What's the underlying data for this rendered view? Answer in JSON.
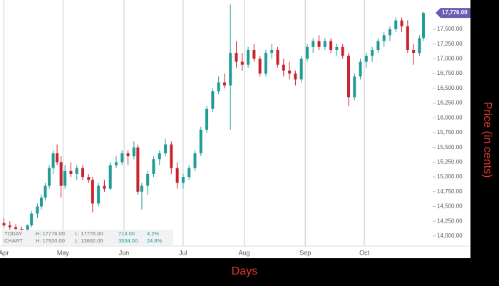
{
  "chart_data": {
    "type": "candlestick",
    "x_label": "Days",
    "y_label": "Price (in cents)",
    "last_price_label": "17,776.00",
    "up_color": "#1f9c96",
    "down_color": "#c8232c",
    "grid": true,
    "x": [
      0,
      3,
      6,
      9,
      12,
      14,
      17,
      19,
      21,
      23,
      25,
      27,
      29,
      31,
      34,
      37,
      40,
      43,
      45,
      48,
      51,
      54,
      57,
      60,
      63,
      66,
      68,
      70,
      73,
      76,
      79,
      82,
      85,
      88,
      91,
      94,
      97,
      100,
      103,
      106,
      109,
      112,
      115,
      118,
      121,
      124,
      127,
      130,
      133,
      136,
      139,
      142,
      145,
      148,
      151,
      154,
      157,
      160,
      163,
      166,
      169,
      172,
      175,
      178,
      181,
      184,
      187,
      190,
      193,
      196,
      199,
      202,
      205,
      208,
      211,
      213
    ],
    "open": [
      14220,
      14180,
      14150,
      14120,
      14100,
      14180,
      14380,
      14500,
      14650,
      14850,
      15150,
      15400,
      15250,
      14850,
      15100,
      15050,
      15150,
      15000,
      14950,
      14550,
      14850,
      14800,
      15200,
      15250,
      15400,
      15350,
      15500,
      14750,
      14850,
      15050,
      15300,
      15400,
      15550,
      15150,
      14900,
      15000,
      15150,
      15400,
      15800,
      16150,
      16450,
      16600,
      16550,
      17100,
      16950,
      16900,
      17150,
      17000,
      16750,
      17100,
      17150,
      16900,
      16800,
      16750,
      16650,
      17000,
      17200,
      17300,
      17200,
      17300,
      17150,
      17200,
      17050,
      16350,
      16700,
      16950,
      17050,
      17150,
      17300,
      17400,
      17500,
      17650,
      17550,
      17150,
      17100,
      17350
    ],
    "high": [
      14300,
      14250,
      14200,
      14160,
      14200,
      14420,
      14550,
      14700,
      14900,
      15200,
      15450,
      15550,
      15350,
      15200,
      15250,
      15200,
      15200,
      15050,
      15000,
      14900,
      14950,
      15250,
      15350,
      15450,
      15450,
      15600,
      15550,
      14900,
      15100,
      15350,
      15450,
      15650,
      15600,
      15250,
      15050,
      15200,
      15450,
      15850,
      16200,
      16500,
      16700,
      16750,
      17920,
      17300,
      17100,
      17200,
      17250,
      17050,
      17150,
      17250,
      17200,
      17000,
      16950,
      16800,
      17050,
      17250,
      17350,
      17400,
      17350,
      17350,
      17250,
      17250,
      17100,
      16750,
      17000,
      17100,
      17200,
      17350,
      17450,
      17550,
      17700,
      17700,
      17650,
      17250,
      17400,
      17800
    ],
    "low": [
      14150,
      14100,
      14080,
      14050,
      14050,
      14150,
      14300,
      14450,
      14600,
      14800,
      15050,
      15200,
      14650,
      14800,
      15000,
      14950,
      14950,
      14900,
      14400,
      14500,
      14750,
      14780,
      15150,
      15200,
      15200,
      15300,
      14700,
      14450,
      14700,
      15000,
      15200,
      15350,
      15050,
      14800,
      14800,
      14950,
      15100,
      15350,
      15750,
      16100,
      16400,
      16500,
      15800,
      16850,
      16800,
      16850,
      16950,
      16700,
      16700,
      17000,
      16850,
      16700,
      16650,
      16550,
      16600,
      16950,
      17100,
      17150,
      17150,
      17100,
      17050,
      17000,
      16200,
      16300,
      16650,
      16850,
      16950,
      17100,
      17200,
      17300,
      17450,
      17450,
      17100,
      16900,
      17050,
      17300
    ],
    "close": [
      14180,
      14150,
      14120,
      14100,
      14180,
      14380,
      14500,
      14650,
      14850,
      15150,
      15400,
      15250,
      14850,
      15100,
      15050,
      15150,
      15000,
      14950,
      14550,
      14850,
      14800,
      15200,
      15250,
      15400,
      15350,
      15500,
      14750,
      14850,
      15050,
      15300,
      15400,
      15550,
      15150,
      14900,
      15000,
      15150,
      15400,
      15800,
      16150,
      16450,
      16600,
      16550,
      17100,
      16950,
      16900,
      17150,
      17000,
      16750,
      17100,
      17150,
      16900,
      16800,
      16750,
      16650,
      17000,
      17200,
      17300,
      17200,
      17300,
      17150,
      17200,
      17050,
      16350,
      16700,
      16950,
      17050,
      17150,
      17300,
      17400,
      17500,
      17650,
      17550,
      17150,
      17100,
      17350,
      17776
    ],
    "xlim": [
      -2,
      217
    ],
    "xticks": [
      {
        "value": 0,
        "label": "Apr"
      },
      {
        "value": 30,
        "label": "May"
      },
      {
        "value": 61,
        "label": "Jun"
      },
      {
        "value": 91,
        "label": "Jul"
      },
      {
        "value": 122,
        "label": "Aug"
      },
      {
        "value": 153,
        "label": "Sep"
      },
      {
        "value": 183,
        "label": "Oct"
      }
    ],
    "ylim": [
      13830,
      17995
    ],
    "yticks": [
      {
        "value": 14000,
        "label": "14,000.00"
      },
      {
        "value": 14250,
        "label": "14,250.00"
      },
      {
        "value": 14500,
        "label": "14,500.00"
      },
      {
        "value": 14750,
        "label": "14,750.00"
      },
      {
        "value": 15000,
        "label": "15,000.00"
      },
      {
        "value": 15250,
        "label": "15,250.00"
      },
      {
        "value": 15500,
        "label": "15,500.00"
      },
      {
        "value": 15750,
        "label": "15,750.00"
      },
      {
        "value": 16000,
        "label": "16,000.00"
      },
      {
        "value": 16250,
        "label": "16,250.00"
      },
      {
        "value": 16500,
        "label": "16,500.00"
      },
      {
        "value": 16750,
        "label": "16,750.00"
      },
      {
        "value": 17000,
        "label": "17,000.00"
      },
      {
        "value": 17250,
        "label": "17,250.00"
      },
      {
        "value": 17500,
        "label": "17,500.00"
      }
    ],
    "info_box": {
      "rows": [
        [
          "TODAY",
          "H: 17776.00",
          "L: 17776.00",
          "713.00",
          "4.2%"
        ],
        [
          "CHART",
          "H: 17920.00",
          "L: 13882.05",
          "3534.00",
          "24.8%"
        ]
      ]
    }
  }
}
